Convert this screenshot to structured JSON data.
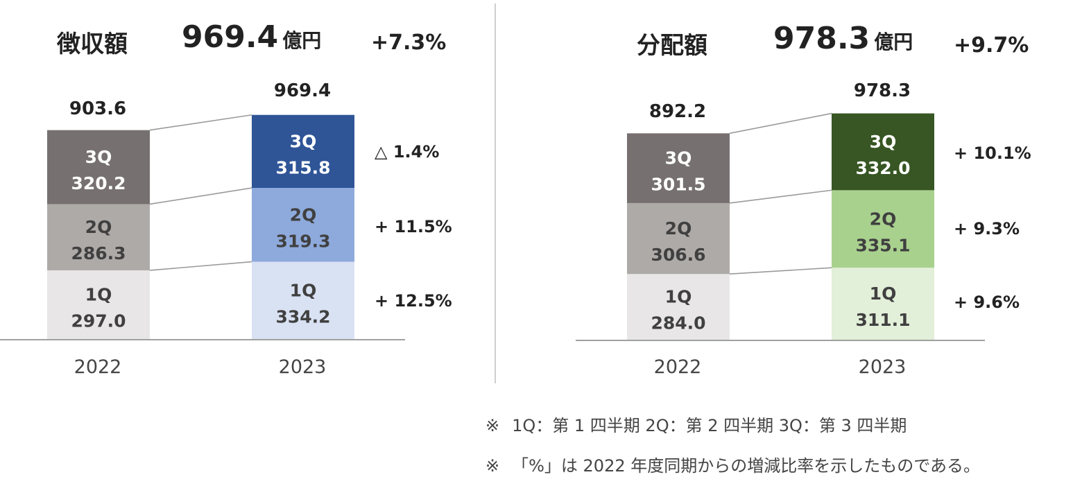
{
  "chart_data": [
    {
      "type": "bar",
      "stacked": true,
      "title": "徴収額",
      "headline_value": "969.4",
      "headline_unit": "億円",
      "headline_change": "+7.3%",
      "categories": [
        "2022",
        "2023"
      ],
      "totals": [
        "903.6",
        "969.4"
      ],
      "series": [
        {
          "name": "1Q",
          "values": [
            297.0,
            334.2
          ],
          "labels": [
            "297.0",
            "334.2"
          ],
          "change": "+ 12.5%"
        },
        {
          "name": "2Q",
          "values": [
            286.3,
            319.3
          ],
          "labels": [
            "286.3",
            "319.3"
          ],
          "change": "+ 11.5%"
        },
        {
          "name": "3Q",
          "values": [
            320.2,
            315.8
          ],
          "labels": [
            "320.2",
            "315.8"
          ],
          "change": "△  1.4%"
        }
      ],
      "colors": {
        "2022": [
          "#e8e6e6",
          "#aeaaa8",
          "#767170"
        ],
        "2023": [
          "#d9e2f3",
          "#8eaadc",
          "#2f5597"
        ],
        "label_dark": "#404040",
        "label_light": "#ffffff"
      }
    },
    {
      "type": "bar",
      "stacked": true,
      "title": "分配額",
      "headline_value": "978.3",
      "headline_unit": "億円",
      "headline_change": "+9.7%",
      "categories": [
        "2022",
        "2023"
      ],
      "totals": [
        "892.2",
        "978.3"
      ],
      "series": [
        {
          "name": "1Q",
          "values": [
            284.0,
            311.1
          ],
          "labels": [
            "284.0",
            "311.1"
          ],
          "change": "+ 9.6%"
        },
        {
          "name": "2Q",
          "values": [
            306.6,
            335.1
          ],
          "labels": [
            "306.6",
            "335.1"
          ],
          "change": "+ 9.3%"
        },
        {
          "name": "3Q",
          "values": [
            301.5,
            332.0
          ],
          "labels": [
            "301.5",
            "332.0"
          ],
          "change": "+ 10.1%"
        }
      ],
      "colors": {
        "2022": [
          "#e8e6e6",
          "#aeaaa8",
          "#767170"
        ],
        "2023": [
          "#e2efd9",
          "#a9d18e",
          "#375623"
        ],
        "label_dark": "#404040",
        "label_light": "#ffffff"
      }
    }
  ],
  "notes": {
    "mark": "※",
    "line1": "1Q：第 1 四半期   2Q：第 2 四半期   3Q：第 3 四半期",
    "line2": "「%」は 2022 年度同期からの増減比率を示したものである。"
  }
}
